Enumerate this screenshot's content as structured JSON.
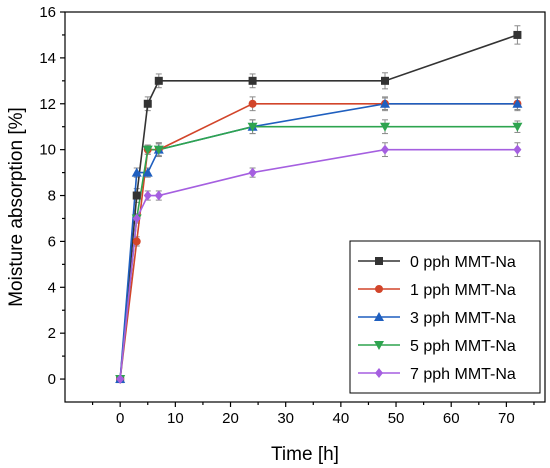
{
  "chart_data": {
    "type": "line",
    "xlabel": "Time [h]",
    "ylabel": "Moisture absorption [%]",
    "xlim": [
      -10,
      77
    ],
    "ylim": [
      -1,
      16
    ],
    "xticks": [
      0,
      10,
      20,
      30,
      40,
      50,
      60,
      70
    ],
    "yticks": [
      0,
      2,
      4,
      6,
      8,
      10,
      12,
      14,
      16
    ],
    "grid": false,
    "legend": "bottom-right",
    "x": [
      0,
      3,
      5,
      7,
      24,
      48,
      72
    ],
    "series": [
      {
        "name": "0 pph MMT-Na",
        "color": "#333333",
        "marker": "square",
        "values": [
          0,
          8,
          12,
          13,
          13,
          13,
          15
        ],
        "errors": [
          0.1,
          0.3,
          0.3,
          0.3,
          0.3,
          0.35,
          0.4
        ]
      },
      {
        "name": "1 pph MMT-Na",
        "color": "#d2452a",
        "marker": "circle",
        "values": [
          0,
          6,
          10,
          10,
          12,
          12,
          12
        ],
        "errors": [
          0.1,
          0.2,
          0.2,
          0.25,
          0.3,
          0.25,
          0.25
        ]
      },
      {
        "name": "3 pph MMT-Na",
        "color": "#1f5fbf",
        "marker": "triangle-up",
        "values": [
          0,
          9,
          9,
          10,
          11,
          12,
          12
        ],
        "errors": [
          0.1,
          0.2,
          0.2,
          0.3,
          0.3,
          0.3,
          0.3
        ]
      },
      {
        "name": "5 pph MMT-Na",
        "color": "#2ea44f",
        "marker": "triangle-down",
        "values": [
          0,
          7,
          10,
          10,
          11,
          11,
          11
        ],
        "errors": [
          0.1,
          0.2,
          0.2,
          0.3,
          0.3,
          0.3,
          0.25
        ]
      },
      {
        "name": "7 pph MMT-Na",
        "color": "#a55fe0",
        "marker": "diamond",
        "values": [
          0,
          7,
          8,
          8,
          9,
          10,
          10
        ],
        "errors": [
          0.1,
          0.2,
          0.2,
          0.2,
          0.2,
          0.3,
          0.3
        ]
      }
    ]
  }
}
